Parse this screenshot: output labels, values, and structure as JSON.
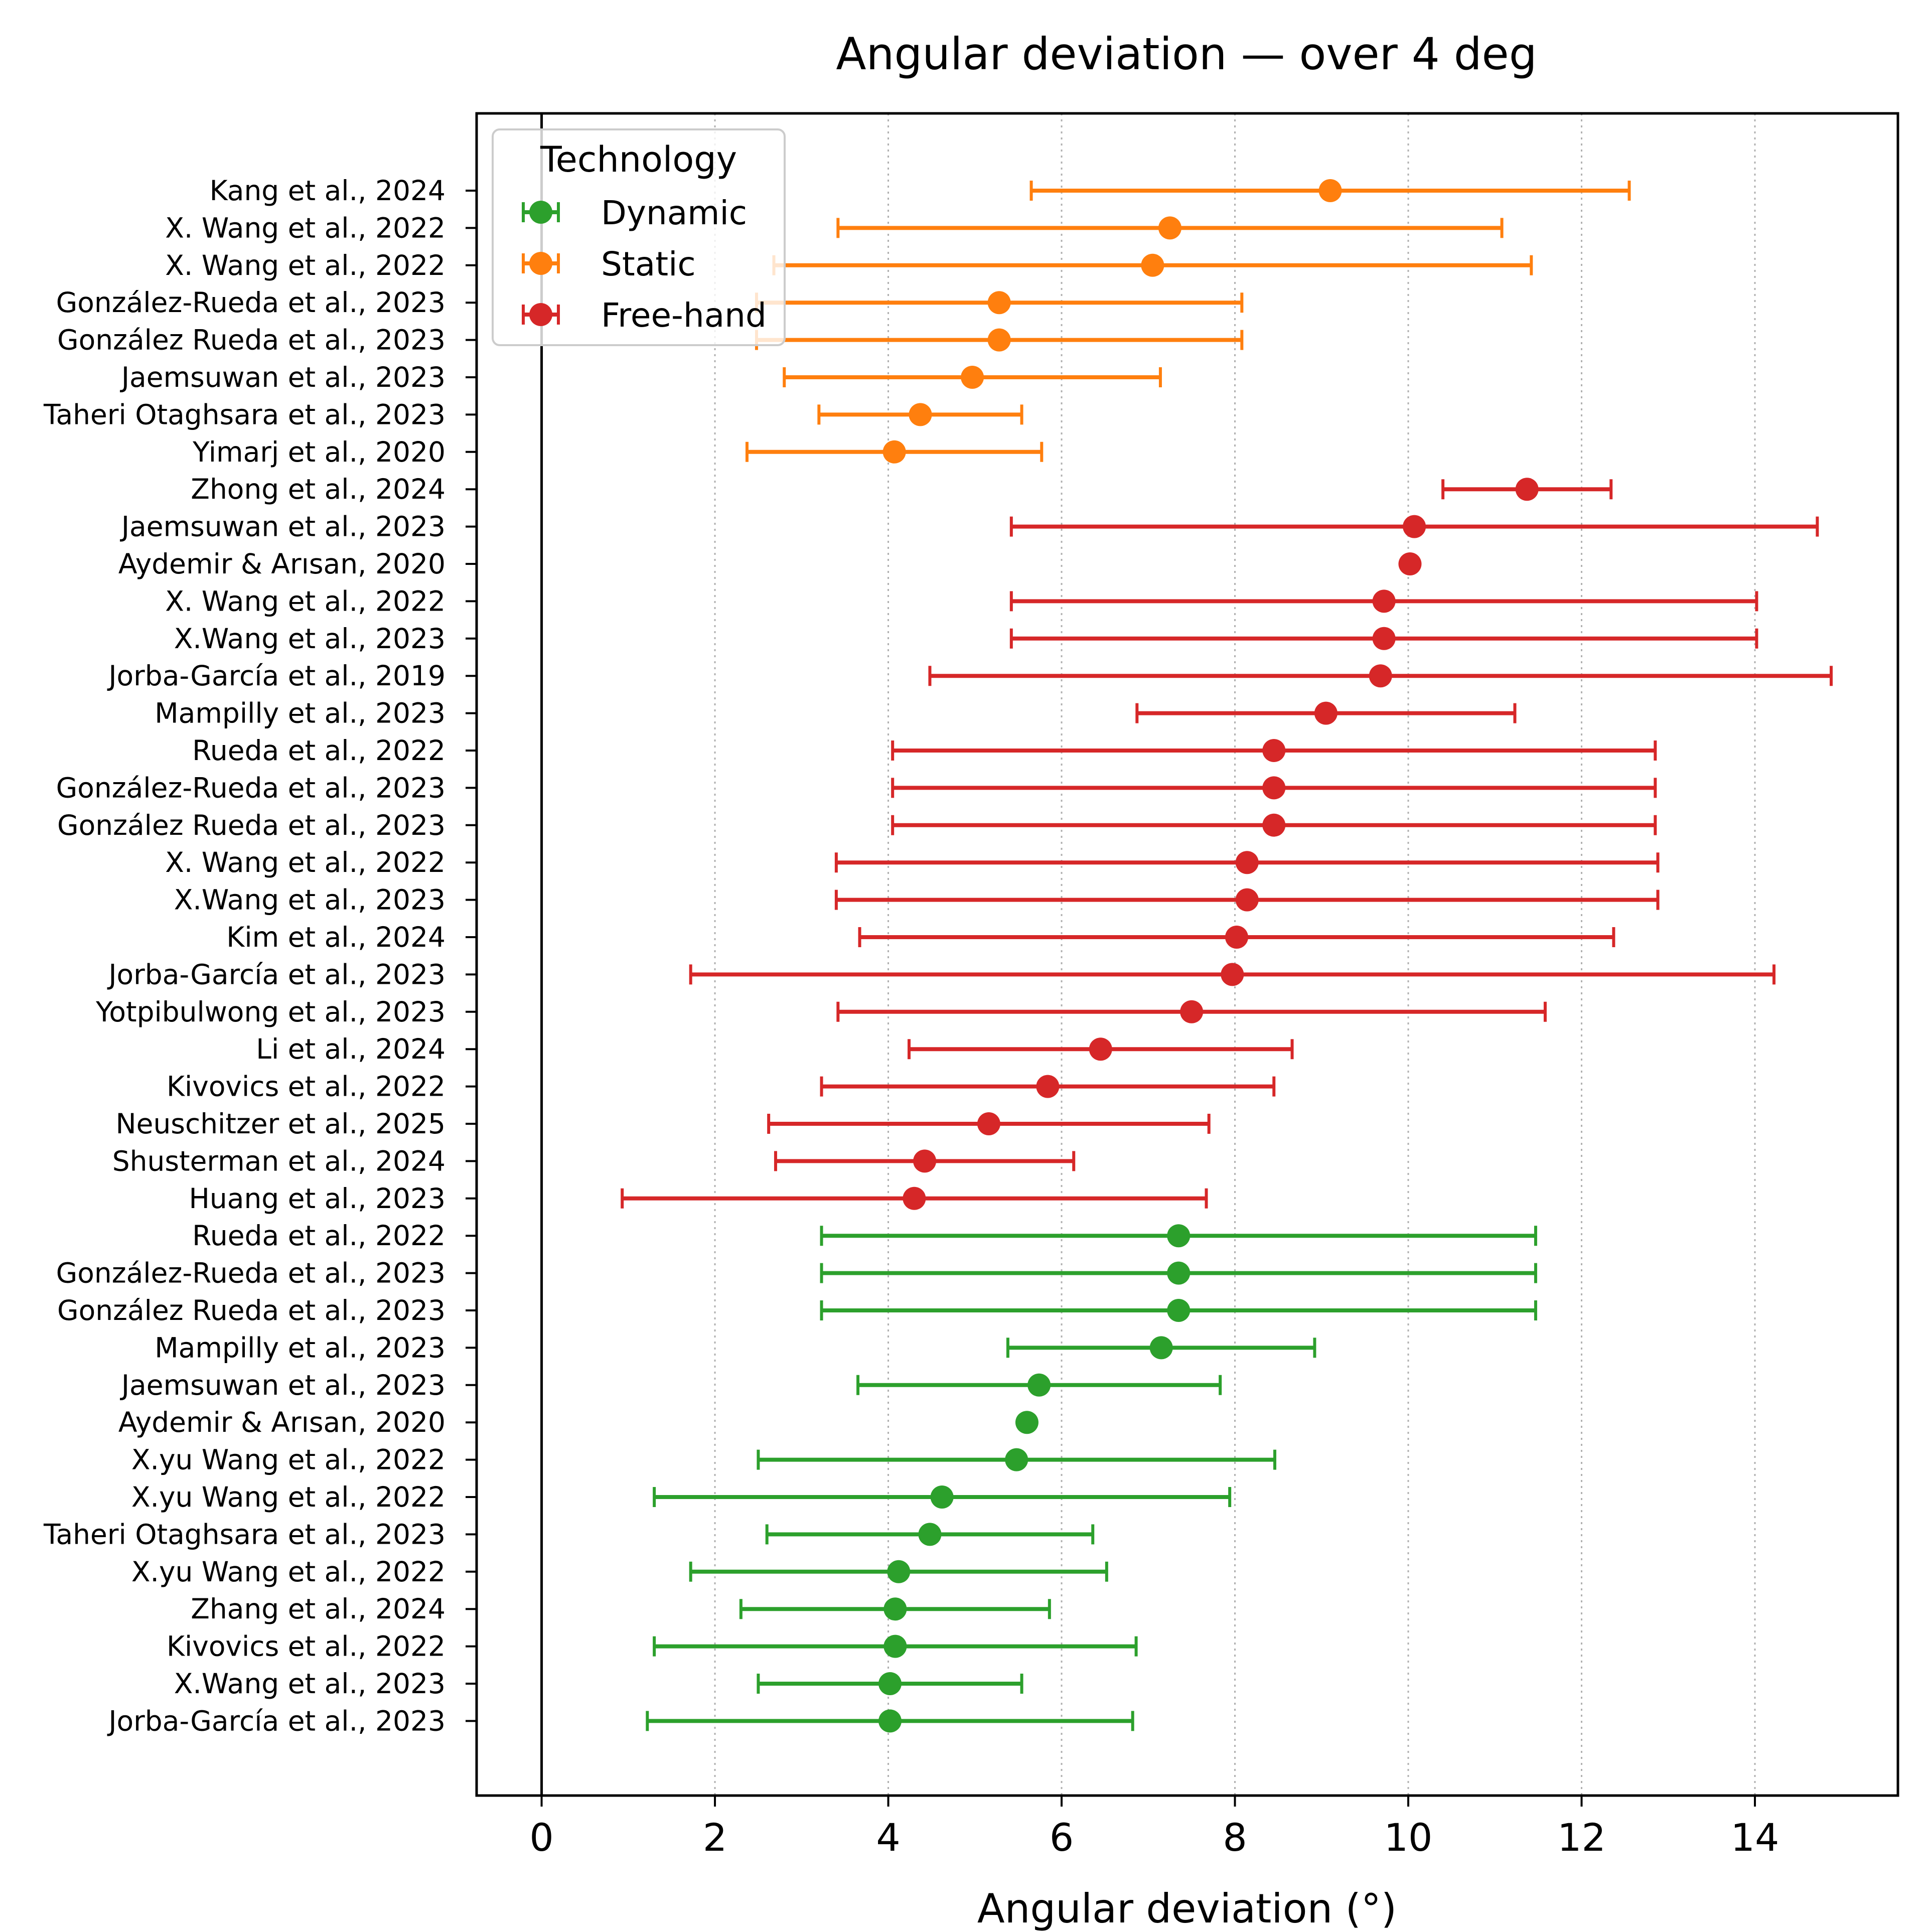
{
  "chart_data": {
    "type": "errorbar",
    "title": "Angular deviation — over 4 deg",
    "xlabel": "Angular deviation (°)",
    "ylabel": "",
    "xlim": [
      -0.75,
      15.65
    ],
    "xticks": [
      0,
      2,
      4,
      6,
      8,
      10,
      12,
      14
    ],
    "xtick_labels": [
      "0",
      "2",
      "4",
      "6",
      "8",
      "10",
      "12",
      "14"
    ],
    "grid": "vertical dotted",
    "reference_line_x": 0,
    "legend": {
      "title": "Technology",
      "position": "upper-left",
      "entries": [
        {
          "label": "Dynamic",
          "color": "#2ca02c"
        },
        {
          "label": "Static",
          "color": "#ff7f0e"
        },
        {
          "label": "Free-hand",
          "color": "#d62728"
        }
      ]
    },
    "colors": {
      "Dynamic": "#2ca02c",
      "Static": "#ff7f0e",
      "Free-hand": "#d62728"
    },
    "rows": [
      {
        "label": "Kang et al., 2024",
        "group": "Static",
        "value": 9.1,
        "low": 5.65,
        "high": 12.55
      },
      {
        "label": "X. Wang et al., 2022",
        "group": "Static",
        "value": 7.25,
        "low": 3.42,
        "high": 11.08
      },
      {
        "label": "X. Wang et al., 2022",
        "group": "Static",
        "value": 7.05,
        "low": 2.68,
        "high": 11.42
      },
      {
        "label": "González-Rueda et al., 2023",
        "group": "Static",
        "value": 5.28,
        "low": 2.48,
        "high": 8.08
      },
      {
        "label": "González Rueda et al., 2023",
        "group": "Static",
        "value": 5.28,
        "low": 2.48,
        "high": 8.08
      },
      {
        "label": "Jaemsuwan et al., 2023",
        "group": "Static",
        "value": 4.97,
        "low": 2.8,
        "high": 7.14
      },
      {
        "label": "Taheri Otaghsara et al., 2023",
        "group": "Static",
        "value": 4.37,
        "low": 3.2,
        "high": 5.54
      },
      {
        "label": "Yimarj et al., 2020",
        "group": "Static",
        "value": 4.07,
        "low": 2.37,
        "high": 5.77
      },
      {
        "label": "Zhong et al., 2024",
        "group": "Free-hand",
        "value": 11.37,
        "low": 10.4,
        "high": 12.34
      },
      {
        "label": "Jaemsuwan et al., 2023",
        "group": "Free-hand",
        "value": 10.07,
        "low": 5.42,
        "high": 14.72
      },
      {
        "label": "Aydemir & Arısan, 2020",
        "group": "Free-hand",
        "value": 10.02,
        "low": 10.02,
        "high": 10.02
      },
      {
        "label": "X. Wang et al., 2022",
        "group": "Free-hand",
        "value": 9.72,
        "low": 5.42,
        "high": 14.02
      },
      {
        "label": "X.Wang et al., 2023",
        "group": "Free-hand",
        "value": 9.72,
        "low": 5.42,
        "high": 14.02
      },
      {
        "label": "Jorba-García et al., 2019",
        "group": "Free-hand",
        "value": 9.68,
        "low": 4.48,
        "high": 14.88
      },
      {
        "label": "Mampilly et al., 2023",
        "group": "Free-hand",
        "value": 9.05,
        "low": 6.87,
        "high": 11.23
      },
      {
        "label": "Rueda et al., 2022",
        "group": "Free-hand",
        "value": 8.45,
        "low": 4.05,
        "high": 12.85
      },
      {
        "label": "González-Rueda et al., 2023",
        "group": "Free-hand",
        "value": 8.45,
        "low": 4.05,
        "high": 12.85
      },
      {
        "label": "González Rueda et al., 2023",
        "group": "Free-hand",
        "value": 8.45,
        "low": 4.05,
        "high": 12.85
      },
      {
        "label": "X. Wang et al., 2022",
        "group": "Free-hand",
        "value": 8.14,
        "low": 3.4,
        "high": 12.88
      },
      {
        "label": "X.Wang et al., 2023",
        "group": "Free-hand",
        "value": 8.14,
        "low": 3.4,
        "high": 12.88
      },
      {
        "label": "Kim et al., 2024",
        "group": "Free-hand",
        "value": 8.02,
        "low": 3.67,
        "high": 12.37
      },
      {
        "label": "Jorba-García et al., 2023",
        "group": "Free-hand",
        "value": 7.97,
        "low": 1.72,
        "high": 14.22
      },
      {
        "label": "Yotpibulwong et al., 2023",
        "group": "Free-hand",
        "value": 7.5,
        "low": 3.42,
        "high": 11.58
      },
      {
        "label": "Li et al., 2024",
        "group": "Free-hand",
        "value": 6.45,
        "low": 4.24,
        "high": 8.66
      },
      {
        "label": "Kivovics et al., 2022",
        "group": "Free-hand",
        "value": 5.84,
        "low": 3.23,
        "high": 8.45
      },
      {
        "label": "Neuschitzer et al., 2025",
        "group": "Free-hand",
        "value": 5.16,
        "low": 2.62,
        "high": 7.7
      },
      {
        "label": "Shusterman et al., 2024",
        "group": "Free-hand",
        "value": 4.42,
        "low": 2.7,
        "high": 6.14
      },
      {
        "label": "Huang et al., 2023",
        "group": "Free-hand",
        "value": 4.3,
        "low": 0.93,
        "high": 7.67
      },
      {
        "label": "Rueda et al., 2022",
        "group": "Dynamic",
        "value": 7.35,
        "low": 3.23,
        "high": 11.47
      },
      {
        "label": "González-Rueda et al., 2023",
        "group": "Dynamic",
        "value": 7.35,
        "low": 3.23,
        "high": 11.47
      },
      {
        "label": "González Rueda et al., 2023",
        "group": "Dynamic",
        "value": 7.35,
        "low": 3.23,
        "high": 11.47
      },
      {
        "label": "Mampilly et al., 2023",
        "group": "Dynamic",
        "value": 7.15,
        "low": 5.38,
        "high": 8.92
      },
      {
        "label": "Jaemsuwan et al., 2023",
        "group": "Dynamic",
        "value": 5.74,
        "low": 3.65,
        "high": 7.83
      },
      {
        "label": "Aydemir & Arısan, 2020",
        "group": "Dynamic",
        "value": 5.6,
        "low": 5.6,
        "high": 5.6
      },
      {
        "label": "X.yu Wang et al., 2022",
        "group": "Dynamic",
        "value": 5.48,
        "low": 2.5,
        "high": 8.46
      },
      {
        "label": "X.yu Wang et al., 2022",
        "group": "Dynamic",
        "value": 4.62,
        "low": 1.3,
        "high": 7.94
      },
      {
        "label": "Taheri Otaghsara et al., 2023",
        "group": "Dynamic",
        "value": 4.48,
        "low": 2.6,
        "high": 6.36
      },
      {
        "label": "X.yu Wang et al., 2022",
        "group": "Dynamic",
        "value": 4.12,
        "low": 1.72,
        "high": 6.52
      },
      {
        "label": "Zhang et al., 2024",
        "group": "Dynamic",
        "value": 4.08,
        "low": 2.3,
        "high": 5.86
      },
      {
        "label": "Kivovics et al., 2022",
        "group": "Dynamic",
        "value": 4.08,
        "low": 1.3,
        "high": 6.86
      },
      {
        "label": "X.Wang et al., 2023",
        "group": "Dynamic",
        "value": 4.02,
        "low": 2.5,
        "high": 5.54
      },
      {
        "label": "Jorba-García et al., 2023",
        "group": "Dynamic",
        "value": 4.02,
        "low": 1.22,
        "high": 6.82
      }
    ]
  }
}
